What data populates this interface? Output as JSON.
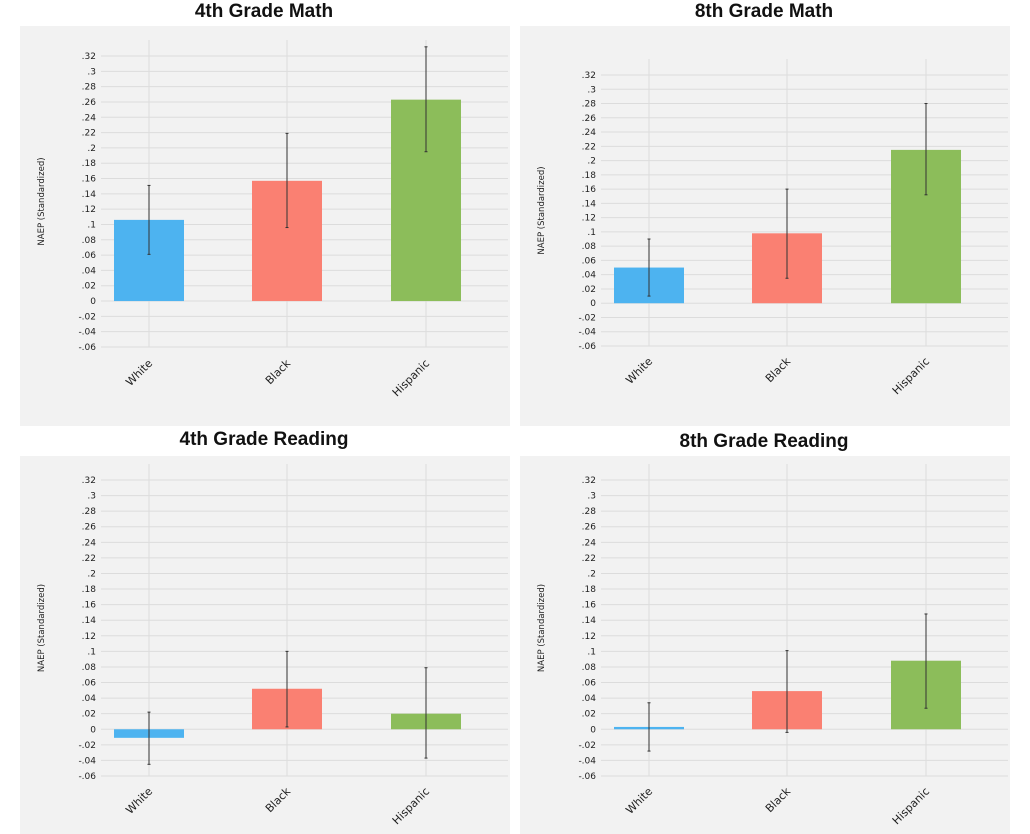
{
  "chart_data": [
    {
      "type": "bar",
      "title": "4th Grade Math",
      "ylabel": "NAEP (Standardized)",
      "xlabel": "",
      "categories": [
        "White",
        "Black",
        "Hispanic"
      ],
      "values": [
        0.106,
        0.157,
        0.263
      ],
      "ci_low": [
        0.061,
        0.096,
        0.195
      ],
      "ci_high": [
        0.151,
        0.219,
        0.332
      ],
      "colors": [
        "#4db3f0",
        "#fa8072",
        "#8cbd5a"
      ],
      "ylim": [
        -0.06,
        0.32
      ],
      "yticks": [
        "-.06",
        "-.04",
        "-.02",
        "0",
        ".02",
        ".04",
        ".06",
        ".08",
        ".1",
        ".12",
        ".14",
        ".16",
        ".18",
        ".2",
        ".22",
        ".24",
        ".26",
        ".28",
        ".3",
        ".32"
      ]
    },
    {
      "type": "bar",
      "title": "8th Grade Math",
      "ylabel": "NAEP (Standardized)",
      "xlabel": "",
      "categories": [
        "White",
        "Black",
        "Hispanic"
      ],
      "values": [
        0.05,
        0.098,
        0.215
      ],
      "ci_low": [
        0.01,
        0.035,
        0.152
      ],
      "ci_high": [
        0.09,
        0.16,
        0.28
      ],
      "colors": [
        "#4db3f0",
        "#fa8072",
        "#8cbd5a"
      ],
      "ylim": [
        -0.06,
        0.32
      ],
      "yticks": [
        "-.06",
        "-.04",
        "-.02",
        "0",
        ".02",
        ".04",
        ".06",
        ".08",
        ".1",
        ".12",
        ".14",
        ".16",
        ".18",
        ".2",
        ".22",
        ".24",
        ".26",
        ".28",
        ".3",
        ".32"
      ]
    },
    {
      "type": "bar",
      "title": "4th Grade Reading",
      "ylabel": "NAEP (Standardized)",
      "xlabel": "",
      "categories": [
        "White",
        "Black",
        "Hispanic"
      ],
      "values": [
        -0.011,
        0.052,
        0.02
      ],
      "ci_low": [
        -0.045,
        0.003,
        -0.037
      ],
      "ci_high": [
        0.022,
        0.1,
        0.079
      ],
      "colors": [
        "#4db3f0",
        "#fa8072",
        "#8cbd5a"
      ],
      "ylim": [
        -0.06,
        0.32
      ],
      "yticks": [
        "-.06",
        "-.04",
        "-.02",
        "0",
        ".02",
        ".04",
        ".06",
        ".08",
        ".1",
        ".12",
        ".14",
        ".16",
        ".18",
        ".2",
        ".22",
        ".24",
        ".26",
        ".28",
        ".3",
        ".32"
      ]
    },
    {
      "type": "bar",
      "title": "8th Grade Reading",
      "ylabel": "NAEP (Standardized)",
      "xlabel": "",
      "categories": [
        "White",
        "Black",
        "Hispanic"
      ],
      "values": [
        0.003,
        0.049,
        0.088
      ],
      "ci_low": [
        -0.028,
        -0.004,
        0.027
      ],
      "ci_high": [
        0.034,
        0.101,
        0.148
      ],
      "colors": [
        "#4db3f0",
        "#fa8072",
        "#8cbd5a"
      ],
      "ylim": [
        -0.06,
        0.32
      ],
      "yticks": [
        "-.06",
        "-.04",
        "-.02",
        "0",
        ".02",
        ".04",
        ".06",
        ".08",
        ".1",
        ".12",
        ".14",
        ".16",
        ".18",
        ".2",
        ".22",
        ".24",
        ".26",
        ".28",
        ".3",
        ".32"
      ]
    }
  ]
}
